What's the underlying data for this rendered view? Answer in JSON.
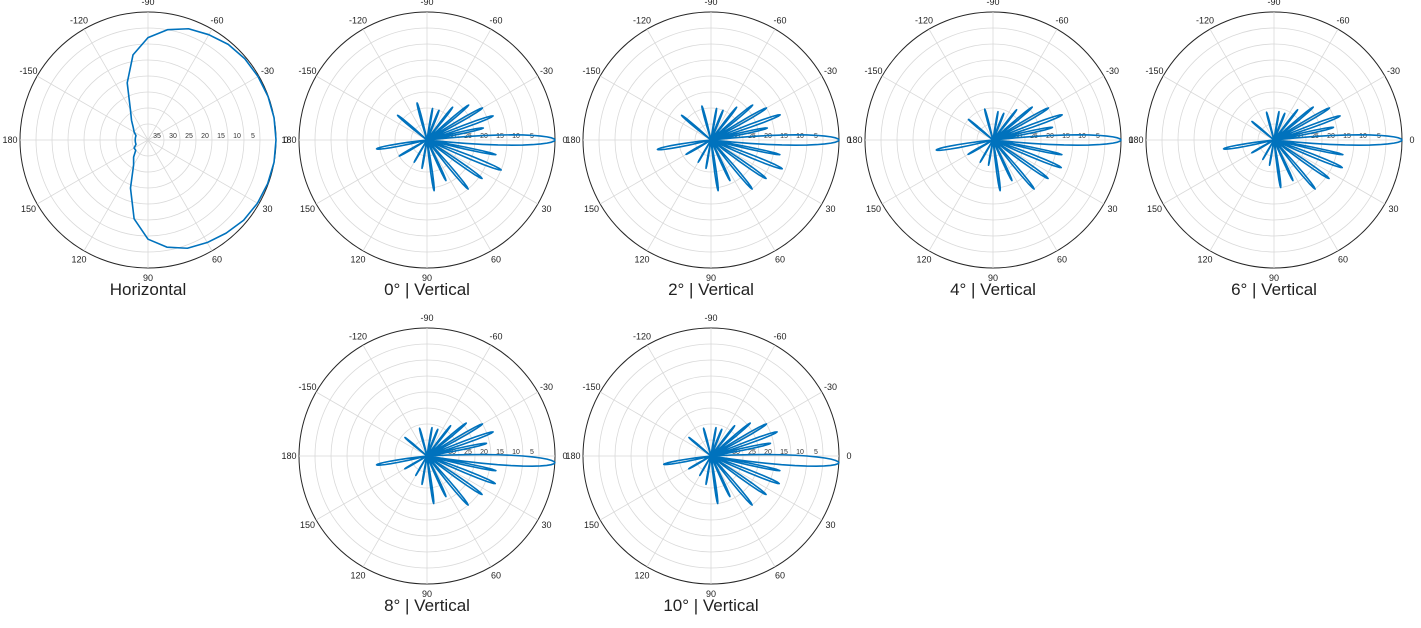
{
  "chart_data": [
    {
      "type": "polar-line",
      "caption": "Horizontal",
      "angle_ticks": [
        "-90",
        "-60",
        "-30",
        "0",
        "30",
        "60",
        "90",
        "120",
        "150",
        "180",
        "-150",
        "-120"
      ],
      "radial_ticks": [
        "35",
        "30",
        "25",
        "20",
        "15",
        "10",
        "5"
      ],
      "radial_inverted": true,
      "grid": true,
      "color": "#0072BD",
      "points": [
        [
          -180,
          36
        ],
        [
          -170,
          36
        ],
        [
          -160,
          36
        ],
        [
          -150,
          35
        ],
        [
          -140,
          34
        ],
        [
          -130,
          32
        ],
        [
          -120,
          29
        ],
        [
          -110,
          21
        ],
        [
          -100,
          13
        ],
        [
          -90,
          8
        ],
        [
          -80,
          5
        ],
        [
          -70,
          3
        ],
        [
          -60,
          2
        ],
        [
          -50,
          1
        ],
        [
          -40,
          0.5
        ],
        [
          -30,
          0.3
        ],
        [
          -20,
          0.1
        ],
        [
          -10,
          0
        ],
        [
          0,
          0
        ],
        [
          10,
          0
        ],
        [
          20,
          0.2
        ],
        [
          30,
          0.5
        ],
        [
          40,
          1
        ],
        [
          50,
          2
        ],
        [
          60,
          3
        ],
        [
          70,
          4
        ],
        [
          80,
          6
        ],
        [
          90,
          9
        ],
        [
          100,
          15
        ],
        [
          110,
          24
        ],
        [
          120,
          31
        ],
        [
          130,
          33
        ],
        [
          140,
          35
        ],
        [
          150,
          35
        ],
        [
          160,
          36
        ],
        [
          170,
          36
        ],
        [
          180,
          36
        ]
      ]
    },
    {
      "type": "polar-line",
      "caption": "0°  |  Vertical",
      "angle_ticks": [
        "-90",
        "-60",
        "-30",
        "0",
        "30",
        "60",
        "90",
        "120",
        "150",
        "180",
        "-150",
        "-120"
      ],
      "radial_ticks": [
        "35",
        "30",
        "25",
        "20",
        "15",
        "10",
        "5"
      ],
      "radial_inverted": true,
      "grid": true,
      "color": "#0072BD",
      "main_lobe": {
        "angle": 0,
        "width": 6,
        "peak": 0
      },
      "side_lobes": [
        {
          "angle": -12,
          "width": 4,
          "peak": 22
        },
        {
          "angle": -20,
          "width": 4,
          "peak": 18
        },
        {
          "angle": -30,
          "width": 4,
          "peak": 20
        },
        {
          "angle": -40,
          "width": 4,
          "peak": 23
        },
        {
          "angle": -52,
          "width": 4,
          "peak": 27
        },
        {
          "angle": -68,
          "width": 5,
          "peak": 30
        },
        {
          "angle": -80,
          "width": 4,
          "peak": 30
        },
        {
          "angle": -105,
          "width": 5,
          "peak": 28
        },
        {
          "angle": -140,
          "width": 5,
          "peak": 28
        },
        {
          "angle": 170,
          "width": 6,
          "peak": 24
        },
        {
          "angle": 150,
          "width": 5,
          "peak": 30
        },
        {
          "angle": 120,
          "width": 4,
          "peak": 32
        },
        {
          "angle": 100,
          "width": 4,
          "peak": 31
        },
        {
          "angle": 82,
          "width": 4,
          "peak": 24
        },
        {
          "angle": 65,
          "width": 4,
          "peak": 26
        },
        {
          "angle": 50,
          "width": 4,
          "peak": 20
        },
        {
          "angle": 35,
          "width": 4,
          "peak": 19
        },
        {
          "angle": 22,
          "width": 4,
          "peak": 15
        },
        {
          "angle": 12,
          "width": 3,
          "peak": 18
        }
      ]
    },
    {
      "type": "polar-line",
      "caption": "2°  |  Vertical",
      "angle_ticks": [
        "-90",
        "-60",
        "-30",
        "0",
        "30",
        "60",
        "90",
        "120",
        "150",
        "180",
        "-150",
        "-120"
      ],
      "radial_ticks": [
        "35",
        "30",
        "25",
        "20",
        "15",
        "10",
        "5"
      ],
      "radial_inverted": true,
      "grid": true,
      "color": "#0072BD",
      "main_lobe": {
        "angle": 0,
        "width": 6,
        "peak": 0
      },
      "side_lobes": [
        {
          "angle": -12,
          "width": 4,
          "peak": 22
        },
        {
          "angle": -20,
          "width": 4,
          "peak": 17
        },
        {
          "angle": -30,
          "width": 4,
          "peak": 20
        },
        {
          "angle": -40,
          "width": 4,
          "peak": 23
        },
        {
          "angle": -52,
          "width": 4,
          "peak": 27
        },
        {
          "angle": -68,
          "width": 5,
          "peak": 30
        },
        {
          "angle": -80,
          "width": 4,
          "peak": 30
        },
        {
          "angle": -105,
          "width": 5,
          "peak": 29
        },
        {
          "angle": -140,
          "width": 5,
          "peak": 28
        },
        {
          "angle": 170,
          "width": 6,
          "peak": 23
        },
        {
          "angle": 150,
          "width": 5,
          "peak": 31
        },
        {
          "angle": 120,
          "width": 4,
          "peak": 32
        },
        {
          "angle": 100,
          "width": 4,
          "peak": 31
        },
        {
          "angle": 82,
          "width": 4,
          "peak": 24
        },
        {
          "angle": 65,
          "width": 4,
          "peak": 26
        },
        {
          "angle": 50,
          "width": 4,
          "peak": 20
        },
        {
          "angle": 35,
          "width": 4,
          "peak": 19
        },
        {
          "angle": 22,
          "width": 4,
          "peak": 16
        },
        {
          "angle": 12,
          "width": 3,
          "peak": 18
        }
      ]
    },
    {
      "type": "polar-line",
      "caption": "4°  |  Vertical",
      "angle_ticks": [
        "-90",
        "-60",
        "-30",
        "0",
        "30",
        "60",
        "90",
        "120",
        "150",
        "180",
        "-150",
        "-120"
      ],
      "radial_ticks": [
        "35",
        "30",
        "25",
        "20",
        "15",
        "10",
        "5"
      ],
      "radial_inverted": true,
      "grid": true,
      "color": "#0072BD",
      "main_lobe": {
        "angle": 0,
        "width": 6,
        "peak": 0
      },
      "side_lobes": [
        {
          "angle": -12,
          "width": 4,
          "peak": 21
        },
        {
          "angle": -20,
          "width": 4,
          "peak": 17
        },
        {
          "angle": -30,
          "width": 4,
          "peak": 20
        },
        {
          "angle": -40,
          "width": 4,
          "peak": 24
        },
        {
          "angle": -52,
          "width": 4,
          "peak": 28
        },
        {
          "angle": -68,
          "width": 5,
          "peak": 31
        },
        {
          "angle": -80,
          "width": 4,
          "peak": 31
        },
        {
          "angle": -105,
          "width": 5,
          "peak": 30
        },
        {
          "angle": -140,
          "width": 5,
          "peak": 30
        },
        {
          "angle": 170,
          "width": 6,
          "peak": 22
        },
        {
          "angle": 150,
          "width": 5,
          "peak": 31
        },
        {
          "angle": 120,
          "width": 4,
          "peak": 32
        },
        {
          "angle": 100,
          "width": 4,
          "peak": 32
        },
        {
          "angle": 82,
          "width": 4,
          "peak": 24
        },
        {
          "angle": 65,
          "width": 4,
          "peak": 26
        },
        {
          "angle": 50,
          "width": 4,
          "peak": 20
        },
        {
          "angle": 35,
          "width": 4,
          "peak": 19
        },
        {
          "angle": 22,
          "width": 4,
          "peak": 17
        },
        {
          "angle": 12,
          "width": 3,
          "peak": 18
        }
      ]
    },
    {
      "type": "polar-line",
      "caption": "6°  |  Vertical",
      "angle_ticks": [
        "-90",
        "-60",
        "-30",
        "0",
        "30",
        "60",
        "90",
        "120",
        "150",
        "180",
        "-150",
        "-120"
      ],
      "radial_ticks": [
        "35",
        "30",
        "25",
        "20",
        "15",
        "10",
        "5"
      ],
      "radial_inverted": true,
      "grid": true,
      "color": "#0072BD",
      "main_lobe": {
        "angle": 0,
        "width": 6,
        "peak": 0
      },
      "side_lobes": [
        {
          "angle": -12,
          "width": 4,
          "peak": 21
        },
        {
          "angle": -20,
          "width": 4,
          "peak": 18
        },
        {
          "angle": -30,
          "width": 4,
          "peak": 20
        },
        {
          "angle": -40,
          "width": 4,
          "peak": 24
        },
        {
          "angle": -52,
          "width": 4,
          "peak": 28
        },
        {
          "angle": -68,
          "width": 5,
          "peak": 31
        },
        {
          "angle": -80,
          "width": 4,
          "peak": 31
        },
        {
          "angle": -105,
          "width": 5,
          "peak": 31
        },
        {
          "angle": -140,
          "width": 5,
          "peak": 31
        },
        {
          "angle": 170,
          "width": 6,
          "peak": 24
        },
        {
          "angle": 150,
          "width": 5,
          "peak": 32
        },
        {
          "angle": 120,
          "width": 4,
          "peak": 33
        },
        {
          "angle": 100,
          "width": 4,
          "peak": 32
        },
        {
          "angle": 82,
          "width": 4,
          "peak": 25
        },
        {
          "angle": 65,
          "width": 4,
          "peak": 26
        },
        {
          "angle": 50,
          "width": 4,
          "peak": 20
        },
        {
          "angle": 35,
          "width": 4,
          "peak": 19
        },
        {
          "angle": 22,
          "width": 4,
          "peak": 17
        },
        {
          "angle": 12,
          "width": 3,
          "peak": 18
        }
      ]
    },
    {
      "type": "polar-line",
      "caption": "8°  |  Vertical",
      "angle_ticks": [
        "-90",
        "-60",
        "-30",
        "0",
        "30",
        "60",
        "90",
        "120",
        "150",
        "180",
        "-150",
        "-120"
      ],
      "radial_ticks": [
        "35",
        "30",
        "25",
        "20",
        "15",
        "10",
        "5"
      ],
      "radial_inverted": true,
      "grid": true,
      "color": "#0072BD",
      "main_lobe": {
        "angle": 3,
        "width": 6,
        "peak": 0
      },
      "side_lobes": [
        {
          "angle": -12,
          "width": 4,
          "peak": 21
        },
        {
          "angle": -20,
          "width": 4,
          "peak": 18
        },
        {
          "angle": -30,
          "width": 4,
          "peak": 20
        },
        {
          "angle": -40,
          "width": 4,
          "peak": 24
        },
        {
          "angle": -52,
          "width": 4,
          "peak": 28
        },
        {
          "angle": -68,
          "width": 5,
          "peak": 31
        },
        {
          "angle": -80,
          "width": 4,
          "peak": 31
        },
        {
          "angle": -105,
          "width": 5,
          "peak": 31
        },
        {
          "angle": -140,
          "width": 5,
          "peak": 31
        },
        {
          "angle": 170,
          "width": 6,
          "peak": 24
        },
        {
          "angle": 150,
          "width": 5,
          "peak": 32
        },
        {
          "angle": 120,
          "width": 4,
          "peak": 33
        },
        {
          "angle": 100,
          "width": 4,
          "peak": 31
        },
        {
          "angle": 82,
          "width": 4,
          "peak": 25
        },
        {
          "angle": 65,
          "width": 4,
          "peak": 26
        },
        {
          "angle": 50,
          "width": 4,
          "peak": 20
        },
        {
          "angle": 35,
          "width": 4,
          "peak": 19
        },
        {
          "angle": 22,
          "width": 4,
          "peak": 17
        },
        {
          "angle": 12,
          "width": 3,
          "peak": 18
        }
      ]
    },
    {
      "type": "polar-line",
      "caption": "10°  |  Vertical",
      "angle_ticks": [
        "-90",
        "-60",
        "-30",
        "0",
        "30",
        "60",
        "90",
        "120",
        "150",
        "180",
        "-150",
        "-120"
      ],
      "radial_ticks": [
        "35",
        "30",
        "25",
        "20",
        "15",
        "10",
        "5"
      ],
      "radial_inverted": true,
      "grid": true,
      "color": "#0072BD",
      "main_lobe": {
        "angle": 3,
        "width": 6,
        "peak": 0
      },
      "side_lobes": [
        {
          "angle": -12,
          "width": 4,
          "peak": 21
        },
        {
          "angle": -20,
          "width": 4,
          "peak": 18
        },
        {
          "angle": -30,
          "width": 4,
          "peak": 20
        },
        {
          "angle": -40,
          "width": 4,
          "peak": 24
        },
        {
          "angle": -52,
          "width": 4,
          "peak": 28
        },
        {
          "angle": -68,
          "width": 5,
          "peak": 31
        },
        {
          "angle": -80,
          "width": 4,
          "peak": 31
        },
        {
          "angle": -105,
          "width": 5,
          "peak": 31
        },
        {
          "angle": -140,
          "width": 5,
          "peak": 31
        },
        {
          "angle": 170,
          "width": 6,
          "peak": 25
        },
        {
          "angle": 150,
          "width": 5,
          "peak": 32
        },
        {
          "angle": 120,
          "width": 4,
          "peak": 33
        },
        {
          "angle": 100,
          "width": 4,
          "peak": 31
        },
        {
          "angle": 82,
          "width": 4,
          "peak": 25
        },
        {
          "angle": 65,
          "width": 4,
          "peak": 26
        },
        {
          "angle": 50,
          "width": 4,
          "peak": 20
        },
        {
          "angle": 35,
          "width": 4,
          "peak": 19
        },
        {
          "angle": 22,
          "width": 4,
          "peak": 17
        },
        {
          "angle": 12,
          "width": 3,
          "peak": 18
        }
      ]
    }
  ]
}
